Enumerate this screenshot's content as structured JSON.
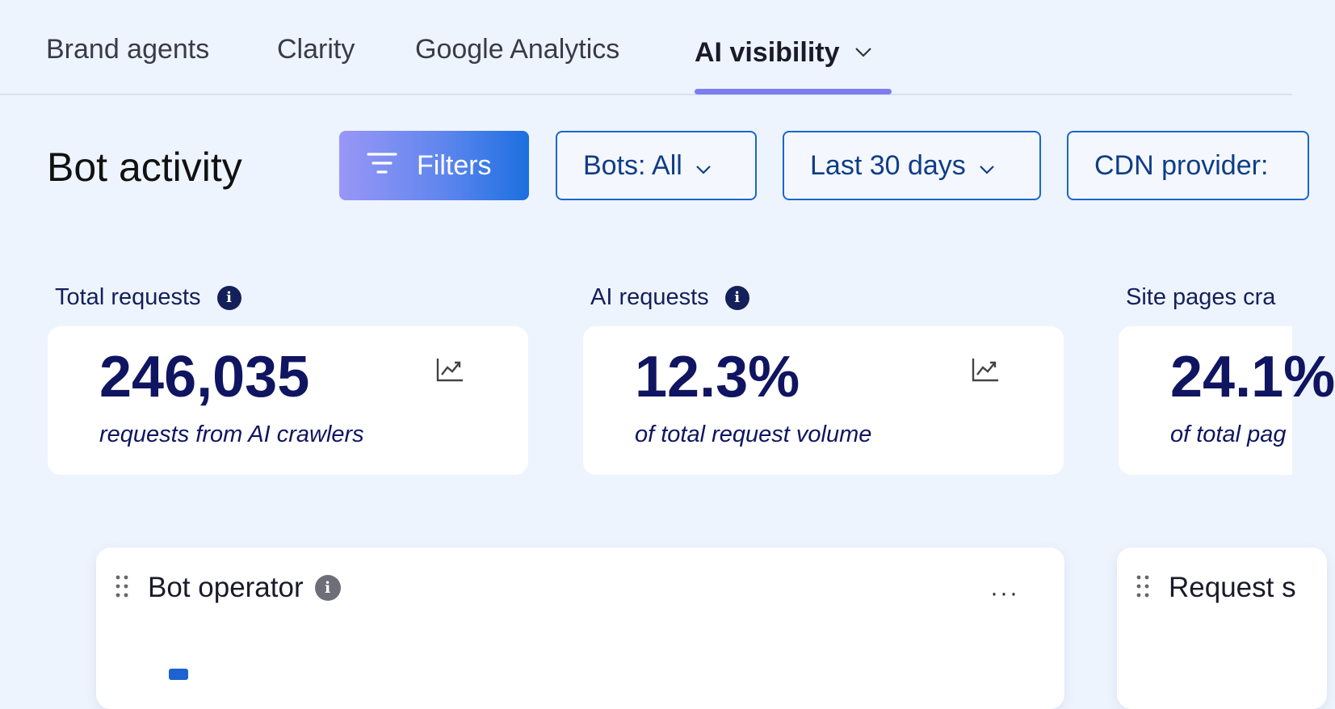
{
  "nav": {
    "tabs": [
      {
        "label": "Brand agents"
      },
      {
        "label": "Clarity"
      },
      {
        "label": "Google Analytics"
      },
      {
        "label": "AI visibility",
        "active": true
      }
    ]
  },
  "toolbar": {
    "title": "Bot activity",
    "filters_label": "Filters",
    "bots_label": "Bots: All",
    "date_label": "Last 30 days",
    "cdn_label": "CDN provider:"
  },
  "kpis": [
    {
      "label": "Total requests",
      "value": "246,035",
      "sub": "requests from AI crawlers"
    },
    {
      "label": "AI requests",
      "value": "12.3%",
      "sub": "of total request volume"
    },
    {
      "label": "Site pages cra",
      "value": "24.1%",
      "sub": "of total pag"
    }
  ],
  "panels": {
    "bot_operator": {
      "title": "Bot operator",
      "more": "···"
    },
    "request": {
      "title": "Request s"
    }
  },
  "colors": {
    "accent": "#7e7cf0",
    "primary_blue": "#1966cf",
    "navy": "#0f1560",
    "background": "#eef4fd"
  },
  "icons": [
    "chevron-down-icon",
    "filter-icon",
    "info-icon",
    "trend-chart-icon",
    "drag-handle-icon",
    "more-icon"
  ]
}
